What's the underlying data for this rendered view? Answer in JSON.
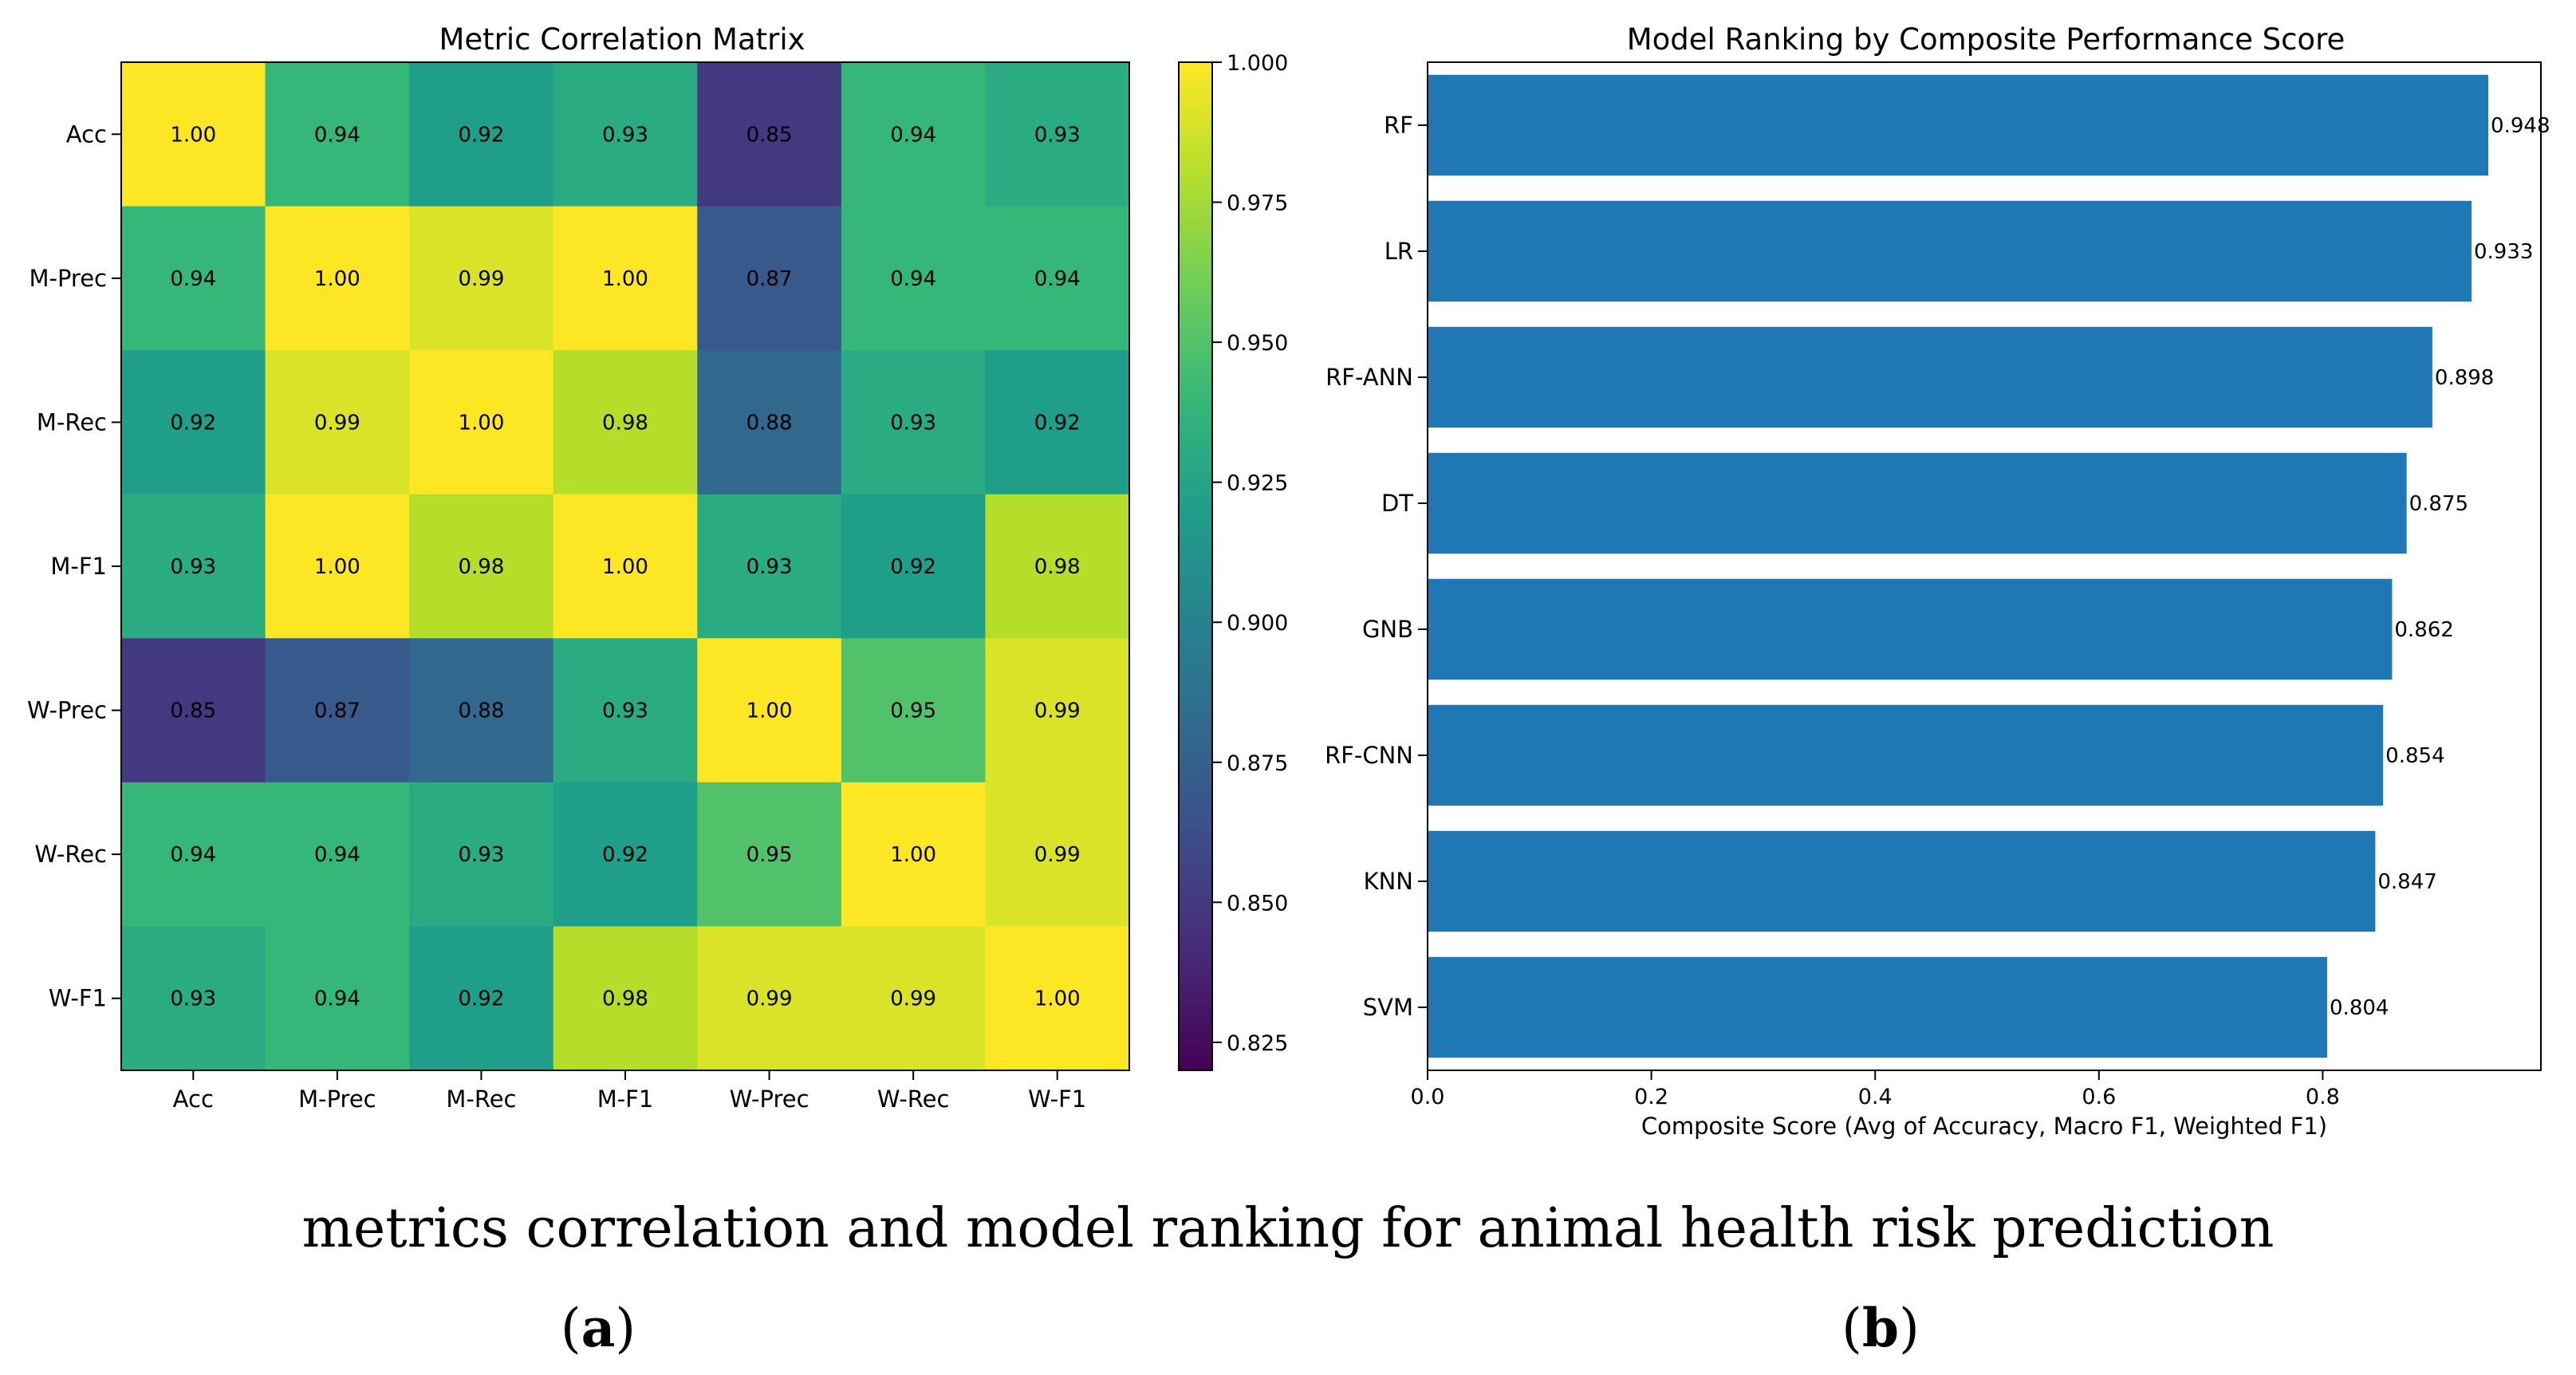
{
  "chart_data": [
    {
      "type": "heatmap",
      "title": "Metric Correlation Matrix",
      "rows": [
        "Acc",
        "M-Prec",
        "M-Rec",
        "M-F1",
        "W-Prec",
        "W-Rec",
        "W-F1"
      ],
      "cols": [
        "Acc",
        "M-Prec",
        "M-Rec",
        "M-F1",
        "W-Prec",
        "W-Rec",
        "W-F1"
      ],
      "values": [
        [
          1.0,
          0.94,
          0.92,
          0.93,
          0.85,
          0.94,
          0.93
        ],
        [
          0.94,
          1.0,
          0.99,
          1.0,
          0.87,
          0.94,
          0.94
        ],
        [
          0.92,
          0.99,
          1.0,
          0.98,
          0.88,
          0.93,
          0.92
        ],
        [
          0.93,
          1.0,
          0.98,
          1.0,
          0.93,
          0.92,
          0.98
        ],
        [
          0.85,
          0.87,
          0.88,
          0.93,
          1.0,
          0.95,
          0.99
        ],
        [
          0.94,
          0.94,
          0.93,
          0.92,
          0.95,
          1.0,
          0.99
        ],
        [
          0.93,
          0.94,
          0.92,
          0.98,
          0.99,
          0.99,
          1.0
        ]
      ],
      "colormap": "viridis",
      "colorbar": {
        "vmin": 0.82,
        "vmax": 1.0,
        "ticks": [
          "0.825",
          "0.850",
          "0.875",
          "0.900",
          "0.925",
          "0.950",
          "0.975",
          "1.000"
        ]
      }
    },
    {
      "type": "bar",
      "orientation": "horizontal",
      "title": "Model Ranking by Composite Performance Score",
      "categories": [
        "RF",
        "LR",
        "RF-ANN",
        "DT",
        "GNB",
        "RF-CNN",
        "KNN",
        "SVM"
      ],
      "values": [
        0.948,
        0.933,
        0.898,
        0.875,
        0.862,
        0.854,
        0.847,
        0.804
      ],
      "value_labels": [
        "0.948",
        "0.933",
        "0.898",
        "0.875",
        "0.862",
        "0.854",
        "0.847",
        "0.804"
      ],
      "xlabel": "Composite Score (Avg of Accuracy, Macro F1, Weighted F1)",
      "ylabel": "",
      "xlim": [
        0,
        0.995
      ],
      "xticks": [
        "0.0",
        "0.2",
        "0.4",
        "0.6",
        "0.8"
      ],
      "bar_color": "#1f77b4"
    }
  ],
  "caption": {
    "text": "metrics correlation and model ranking for animal health risk prediction",
    "panel_a": {
      "open": "(",
      "letter": "a",
      "close": ")"
    },
    "panel_b": {
      "open": "(",
      "letter": "b",
      "close": ")"
    }
  }
}
